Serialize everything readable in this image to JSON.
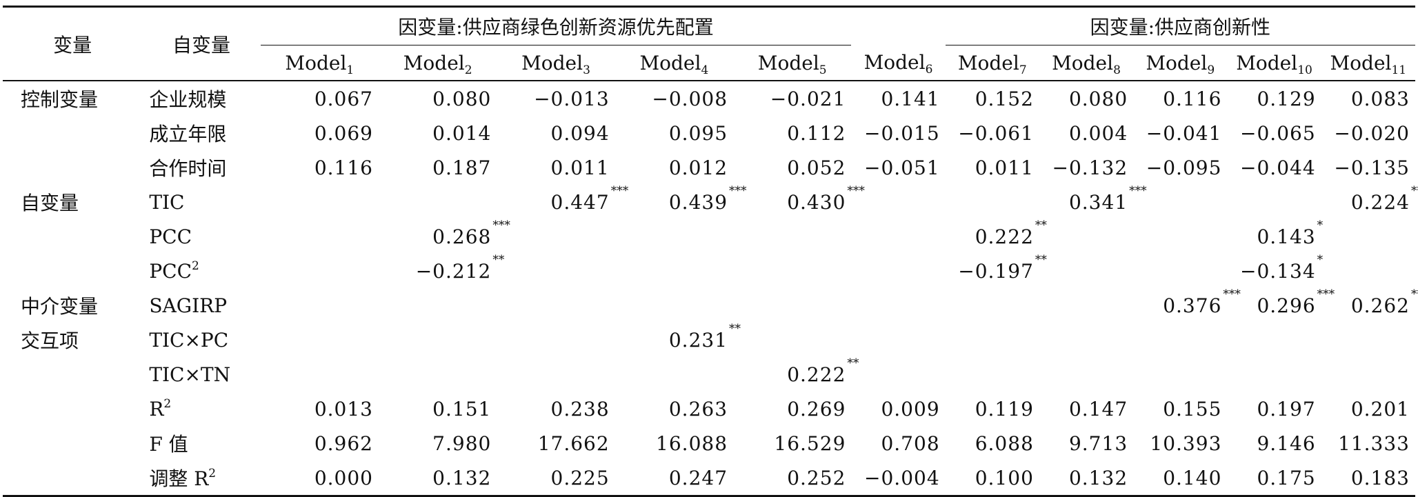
{
  "header": {
    "col_variable": "变量",
    "col_independent": "自变量",
    "group_a": "因变量:供应商绿色创新资源优先配置",
    "group_b": "因变量:供应商创新性",
    "model_base": "Model",
    "model_subs": [
      "1",
      "2",
      "3",
      "4",
      "5",
      "6",
      "7",
      "8",
      "9",
      "10",
      "11"
    ]
  },
  "rows": [
    {
      "cat": "控制变量",
      "var": "企业规模",
      "vals": [
        "0.067",
        "0.080",
        "−0.013",
        "−0.008",
        "−0.021",
        "0.141",
        "0.152",
        "0.080",
        "0.116",
        "0.129",
        "0.083"
      ],
      "stars": [
        "",
        "",
        "",
        "",
        "",
        "",
        "",
        "",
        "",
        "",
        ""
      ]
    },
    {
      "cat": "",
      "var": "成立年限",
      "vals": [
        "0.069",
        "0.014",
        "0.094",
        "0.095",
        "0.112",
        "−0.015",
        "−0.061",
        "0.004",
        "−0.041",
        "−0.065",
        "−0.020"
      ],
      "stars": [
        "",
        "",
        "",
        "",
        "",
        "",
        "",
        "",
        "",
        "",
        ""
      ]
    },
    {
      "cat": "",
      "var": "合作时间",
      "vals": [
        "0.116",
        "0.187",
        "0.011",
        "0.012",
        "0.052",
        "−0.051",
        "0.011",
        "−0.132",
        "−0.095",
        "−0.044",
        "−0.135"
      ],
      "stars": [
        "",
        "",
        "",
        "",
        "",
        "",
        "",
        "",
        "",
        "",
        ""
      ]
    },
    {
      "cat": "自变量",
      "var": "TIC",
      "vals": [
        "",
        "",
        "0.447",
        "0.439",
        "0.430",
        "",
        "",
        "0.341",
        "",
        "",
        "0.224"
      ],
      "stars": [
        "",
        "",
        "***",
        "***",
        "***",
        "",
        "",
        "***",
        "",
        "",
        "***"
      ]
    },
    {
      "cat": "",
      "var": "PCC",
      "vals": [
        "",
        "0.268",
        "",
        "",
        "",
        "",
        "0.222",
        "",
        "",
        "0.143",
        ""
      ],
      "stars": [
        "",
        "***",
        "",
        "",
        "",
        "",
        "**",
        "",
        "",
        "*",
        ""
      ]
    },
    {
      "cat": "",
      "var": "PCC",
      "var_sup": "2",
      "vals": [
        "",
        "−0.212",
        "",
        "",
        "",
        "",
        "−0.197",
        "",
        "",
        "−0.134",
        ""
      ],
      "stars": [
        "",
        "**",
        "",
        "",
        "",
        "",
        "**",
        "",
        "",
        "*",
        ""
      ]
    },
    {
      "cat": "中介变量",
      "var": "SAGIRP",
      "vals": [
        "",
        "",
        "",
        "",
        "",
        "",
        "",
        "",
        "0.376",
        "0.296",
        "0.262"
      ],
      "stars": [
        "",
        "",
        "",
        "",
        "",
        "",
        "",
        "",
        "***",
        "***",
        "***"
      ]
    },
    {
      "cat": "交互项",
      "var": "TIC×PC",
      "vals": [
        "",
        "",
        "",
        "0.231",
        "",
        "",
        "",
        "",
        "",
        "",
        ""
      ],
      "stars": [
        "",
        "",
        "",
        "**",
        "",
        "",
        "",
        "",
        "",
        "",
        ""
      ]
    },
    {
      "cat": "",
      "var": "TIC×TN",
      "vals": [
        "",
        "",
        "",
        "",
        "0.222",
        "",
        "",
        "",
        "",
        "",
        ""
      ],
      "stars": [
        "",
        "",
        "",
        "",
        "**",
        "",
        "",
        "",
        "",
        "",
        ""
      ]
    },
    {
      "cat": "",
      "var": "R",
      "var_sup": "2",
      "vals": [
        "0.013",
        "0.151",
        "0.238",
        "0.263",
        "0.269",
        "0.009",
        "0.119",
        "0.147",
        "0.155",
        "0.197",
        "0.201"
      ],
      "stars": [
        "",
        "",
        "",
        "",
        "",
        "",
        "",
        "",
        "",
        "",
        ""
      ]
    },
    {
      "cat": "",
      "var": "F 值",
      "vals": [
        "0.962",
        "7.980",
        "17.662",
        "16.088",
        "16.529",
        "0.708",
        "6.088",
        "9.713",
        "10.393",
        "9.146",
        "11.333"
      ],
      "stars": [
        "",
        "",
        "",
        "",
        "",
        "",
        "",
        "",
        "",
        "",
        ""
      ]
    },
    {
      "cat": "",
      "var": "调整 R",
      "var_sup": "2",
      "vals": [
        "0.000",
        "0.132",
        "0.225",
        "0.247",
        "0.252",
        "−0.004",
        "0.100",
        "0.132",
        "0.140",
        "0.175",
        "0.183"
      ],
      "stars": [
        "",
        "",
        "",
        "",
        "",
        "",
        "",
        "",
        "",
        "",
        ""
      ]
    }
  ]
}
